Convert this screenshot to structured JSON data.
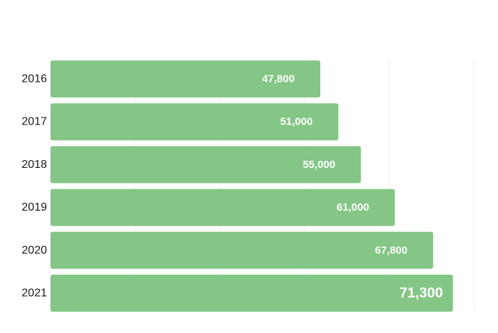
{
  "chart_data": {
    "type": "bar",
    "orientation": "horizontal",
    "categories": [
      "2016",
      "2017",
      "2018",
      "2019",
      "2020",
      "2021"
    ],
    "values": [
      47800,
      51000,
      55000,
      61000,
      67800,
      71300
    ],
    "value_labels": [
      "47,800",
      "51,000",
      "55,000",
      "61,000",
      "67,800",
      "71,300"
    ],
    "title": "",
    "xlabel": "",
    "ylabel": "",
    "xlim": [
      0,
      75000
    ],
    "grid": true,
    "legend": "none",
    "bar_color": "#84c685",
    "label_color": "#ffffff",
    "category_label_color": "#1a1a1a"
  }
}
